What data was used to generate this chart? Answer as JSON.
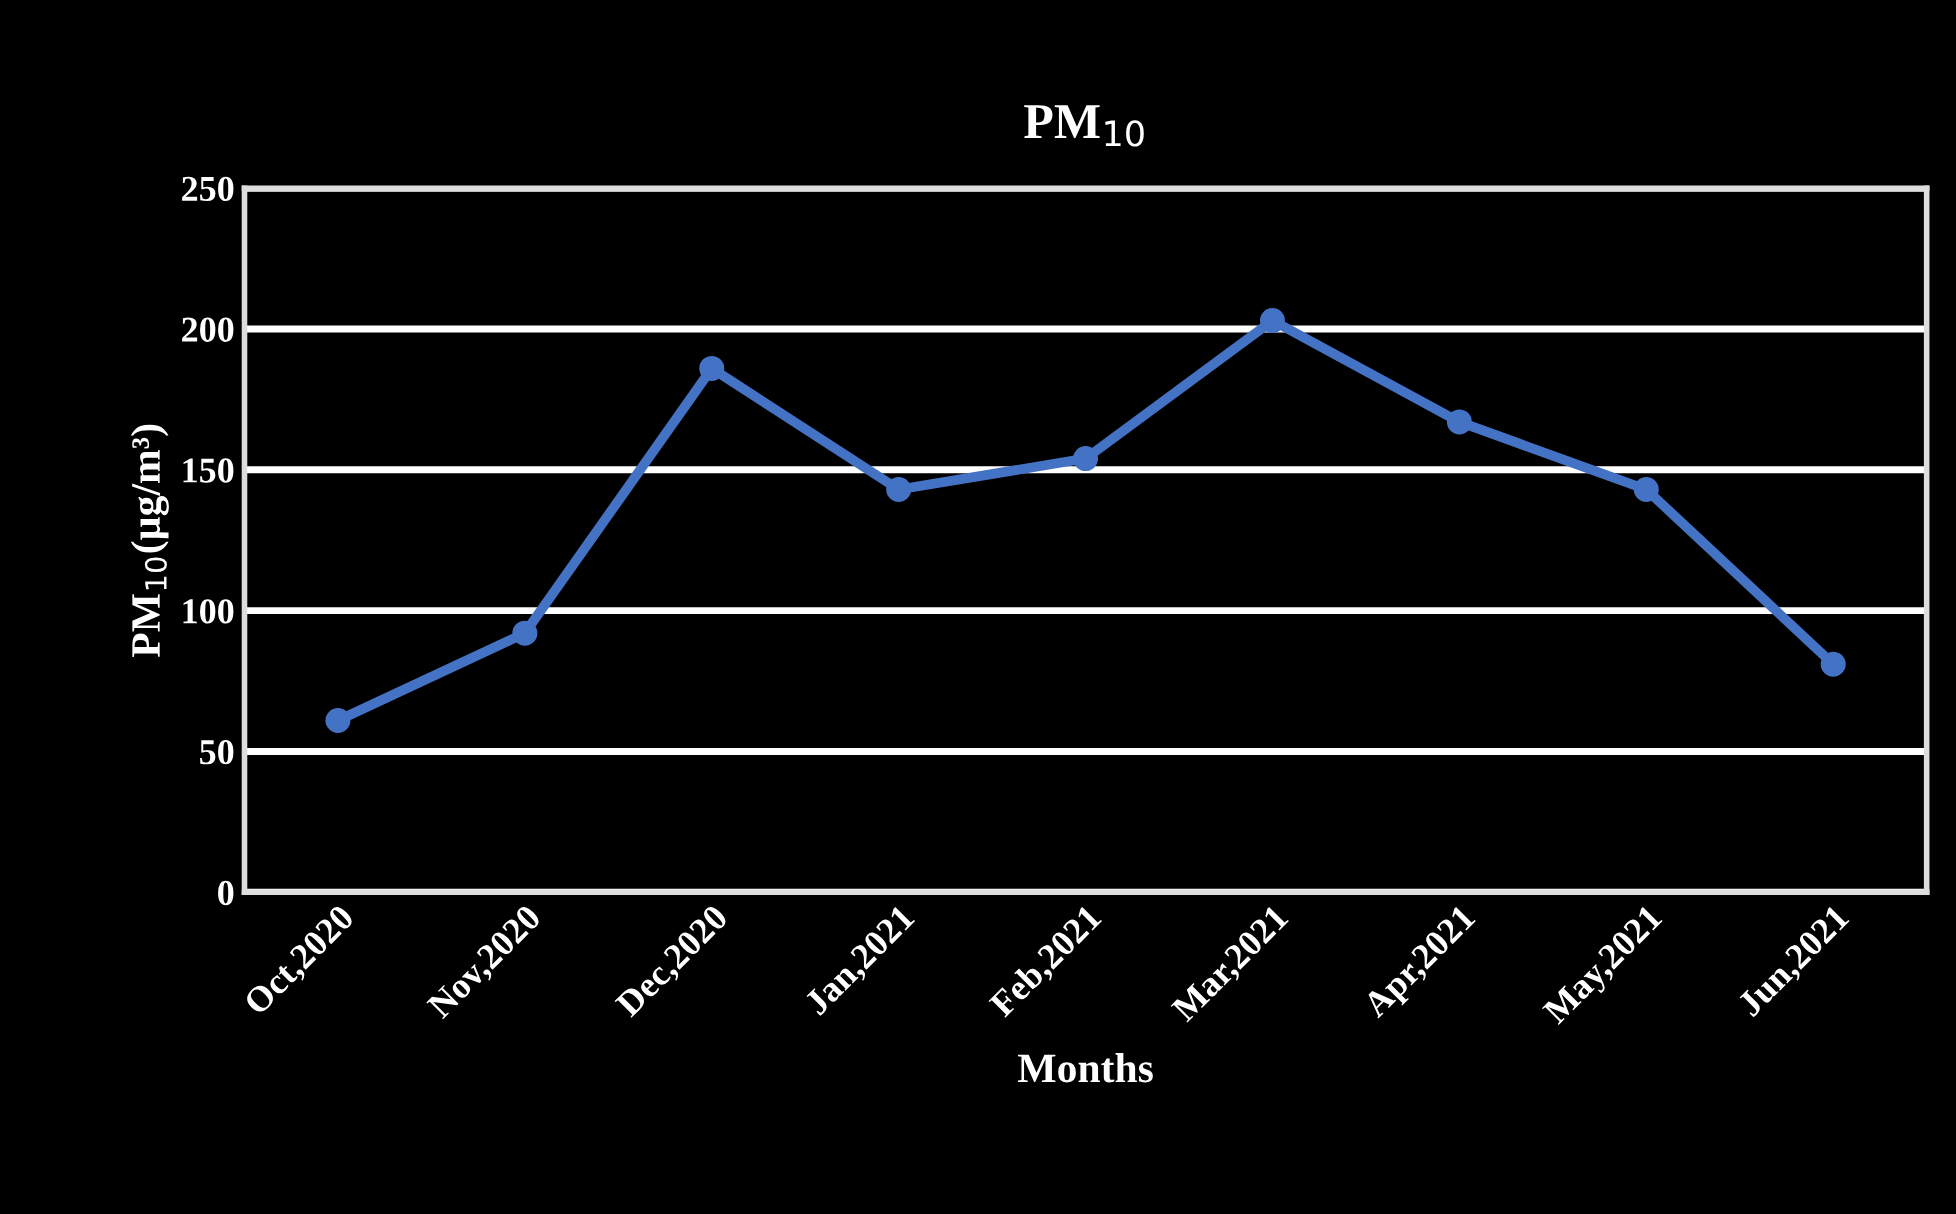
{
  "chart_data": {
    "type": "line",
    "title": "PM$_{10}$",
    "xlabel": "Months",
    "ylabel": "PM$_{10}$(µg/m³)",
    "categories": [
      "Oct,2020",
      "Nov,2020",
      "Dec,2020",
      "Jan,2021",
      "Feb,2021",
      "Mar,2021",
      "Apr,2021",
      "May,2021",
      "Jun,2021"
    ],
    "series": [
      {
        "color": "#4472c4",
        "values": [
          61,
          92,
          186,
          143,
          154,
          203,
          167,
          143,
          81
        ]
      }
    ],
    "ylim": [
      0,
      250
    ],
    "yticks": [
      0,
      50,
      100,
      150,
      200,
      250
    ],
    "grid": "y",
    "marker": "circle",
    "line_style": "solid",
    "legend": false
  }
}
